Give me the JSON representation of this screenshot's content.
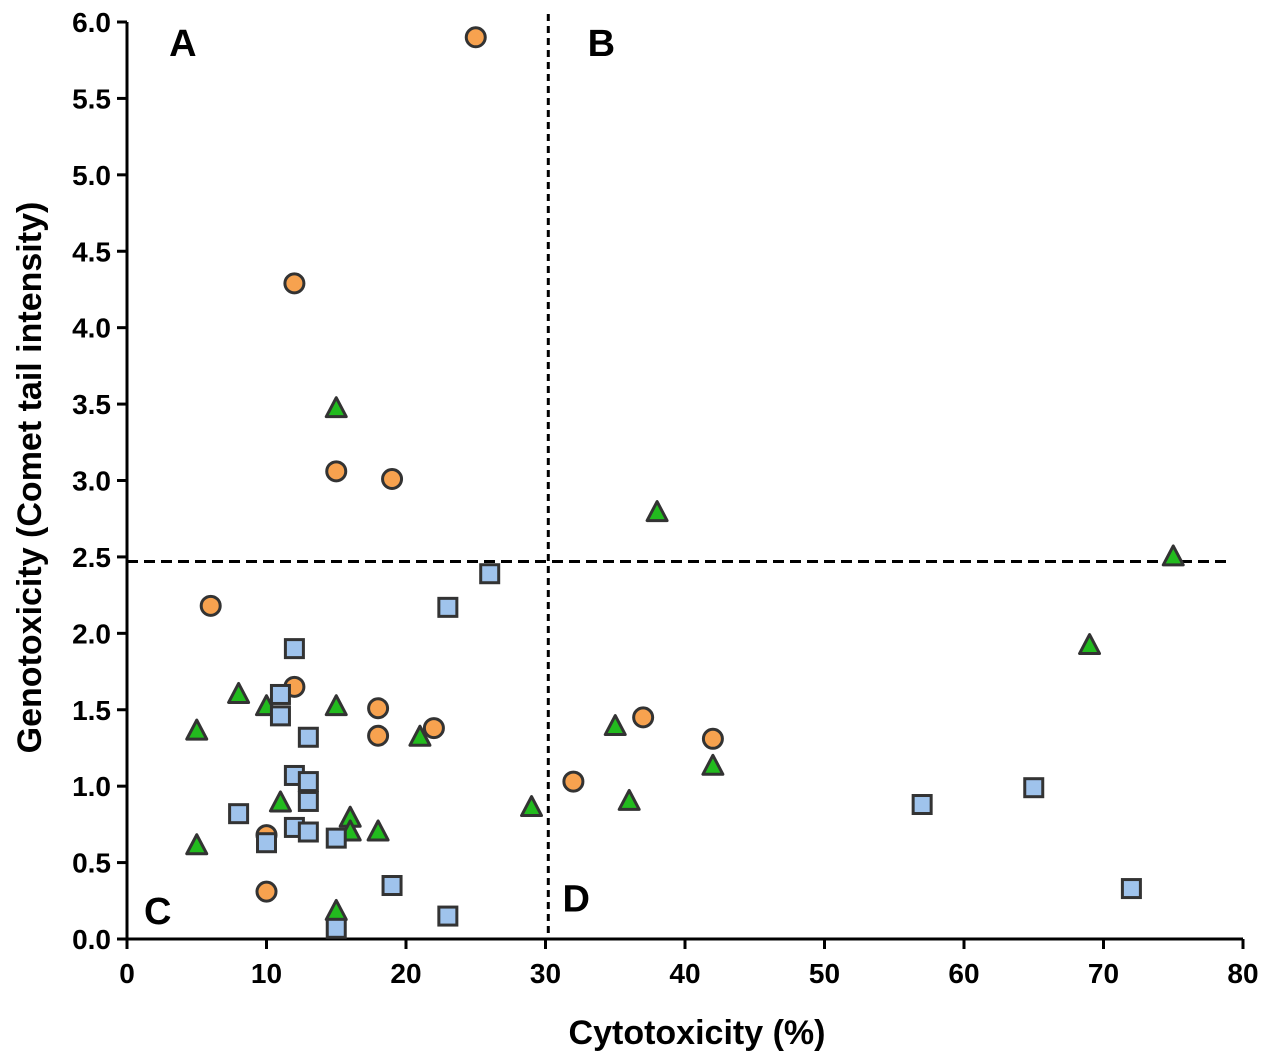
{
  "chart_data": {
    "type": "scatter",
    "title": "",
    "xlabel": "Cytotoxicity (%)",
    "ylabel": "Genotoxicity (Comet tail intensity)",
    "xlim": [
      0,
      80
    ],
    "ylim": [
      0,
      6
    ],
    "x_ticks": [
      "0",
      "10",
      "20",
      "30",
      "40",
      "50",
      "60",
      "70",
      "80"
    ],
    "x_tick_values": [
      0,
      10,
      20,
      30,
      40,
      50,
      60,
      70,
      80
    ],
    "y_ticks": [
      "0.0",
      "0.5",
      "1.0",
      "1.5",
      "2.0",
      "2.5",
      "3.0",
      "3.5",
      "4.0",
      "4.5",
      "5.0",
      "5.5",
      "6.0"
    ],
    "y_tick_values": [
      0,
      0.5,
      1.0,
      1.5,
      2.0,
      2.5,
      3.0,
      3.5,
      4.0,
      4.5,
      5.0,
      5.5,
      6.0
    ],
    "grid": false,
    "legend": "none",
    "thresholds": {
      "x": 30.2,
      "y": 2.47
    },
    "quadrants": [
      {
        "label": "A",
        "x": 4,
        "y": 5.87
      },
      {
        "label": "B",
        "x": 34,
        "y": 5.87
      },
      {
        "label": "C",
        "x": 2.2,
        "y": 0.19
      },
      {
        "label": "D",
        "x": 32.2,
        "y": 0.27
      }
    ],
    "colors": {
      "circle": "#f7a24f",
      "triangle": "#22bb1e",
      "square": "#9fc3ec",
      "stroke": "#333333"
    },
    "series": [
      {
        "name": "circle",
        "marker": "circle",
        "points": [
          [
            25,
            5.9
          ],
          [
            12,
            4.29
          ],
          [
            15,
            3.06
          ],
          [
            19,
            3.01
          ],
          [
            6,
            2.18
          ],
          [
            12,
            1.65
          ],
          [
            18,
            1.51
          ],
          [
            22,
            1.38
          ],
          [
            18,
            1.33
          ],
          [
            10,
            0.68
          ],
          [
            10,
            0.31
          ],
          [
            32,
            1.03
          ],
          [
            37,
            1.45
          ],
          [
            42,
            1.31
          ]
        ]
      },
      {
        "name": "triangle",
        "marker": "triangle",
        "points": [
          [
            15,
            3.47
          ],
          [
            38,
            2.79
          ],
          [
            75,
            2.5
          ],
          [
            69,
            1.92
          ],
          [
            8,
            1.6
          ],
          [
            10,
            1.52
          ],
          [
            15,
            1.52
          ],
          [
            5,
            1.36
          ],
          [
            21,
            1.32
          ],
          [
            35,
            1.39
          ],
          [
            42,
            1.13
          ],
          [
            11,
            0.89
          ],
          [
            36,
            0.9
          ],
          [
            29,
            0.86
          ],
          [
            16,
            0.79
          ],
          [
            16,
            0.7
          ],
          [
            18,
            0.7
          ],
          [
            5,
            0.61
          ],
          [
            15,
            0.18
          ]
        ]
      },
      {
        "name": "square",
        "marker": "square",
        "points": [
          [
            26,
            2.39
          ],
          [
            23,
            2.17
          ],
          [
            12,
            1.9
          ],
          [
            11,
            1.6
          ],
          [
            11,
            1.46
          ],
          [
            13,
            1.32
          ],
          [
            12,
            1.07
          ],
          [
            13,
            1.03
          ],
          [
            13,
            0.9
          ],
          [
            8,
            0.82
          ],
          [
            12,
            0.73
          ],
          [
            13,
            0.7
          ],
          [
            10,
            0.63
          ],
          [
            15,
            0.66
          ],
          [
            19,
            0.35
          ],
          [
            23,
            0.15
          ],
          [
            15,
            0.07
          ],
          [
            57,
            0.88
          ],
          [
            65,
            0.99
          ],
          [
            72,
            0.33
          ]
        ]
      }
    ]
  }
}
